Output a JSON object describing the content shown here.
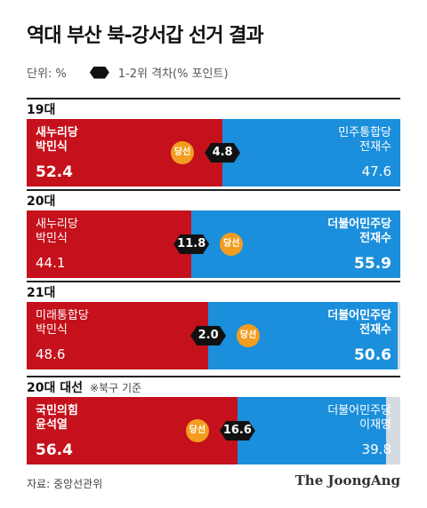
{
  "title": "역대 부산 북-강서갑 선거 결과",
  "legend": {
    "unit": "단위: %",
    "gap_label": "1-2위 격차(% 포인트)"
  },
  "winner_badge": "당선",
  "chart_data": {
    "type": "bar",
    "title": "역대 부산 북-강서갑 선거 결과",
    "unit": "%",
    "elections": [
      {
        "label": "19대",
        "note": "",
        "left": {
          "party": "새누리당",
          "name": "박민식",
          "value": 52.4,
          "color": "#c4111b",
          "winner": true
        },
        "right": {
          "party": "민주통합당",
          "name": "전재수",
          "value": 47.6,
          "color": "#1b8fdb",
          "winner": false
        },
        "gap": 4.8
      },
      {
        "label": "20대",
        "note": "",
        "left": {
          "party": "새누리당",
          "name": "박민식",
          "value": 44.1,
          "color": "#c4111b",
          "winner": false
        },
        "right": {
          "party": "더불어민주당",
          "name": "전재수",
          "value": 55.9,
          "color": "#1b8fdb",
          "winner": true
        },
        "gap": 11.8
      },
      {
        "label": "21대",
        "note": "",
        "left": {
          "party": "미래통합당",
          "name": "박민식",
          "value": 48.6,
          "color": "#c4111b",
          "winner": false
        },
        "right": {
          "party": "더불어민주당",
          "name": "전재수",
          "value": 50.6,
          "color": "#1b8fdb",
          "winner": true
        },
        "gap": 2.0
      },
      {
        "label": "20대 대선",
        "note": "※북구 기준",
        "left": {
          "party": "국민의힘",
          "name": "윤석열",
          "value": 56.4,
          "color": "#c4111b",
          "winner": true
        },
        "right": {
          "party": "더불어민주당",
          "name": "이재명",
          "value": 39.8,
          "color": "#1b8fdb",
          "winner": false
        },
        "gap": 16.6
      }
    ]
  },
  "footer": {
    "source": "자료: 중앙선관위",
    "brand": "The JoongAng"
  }
}
